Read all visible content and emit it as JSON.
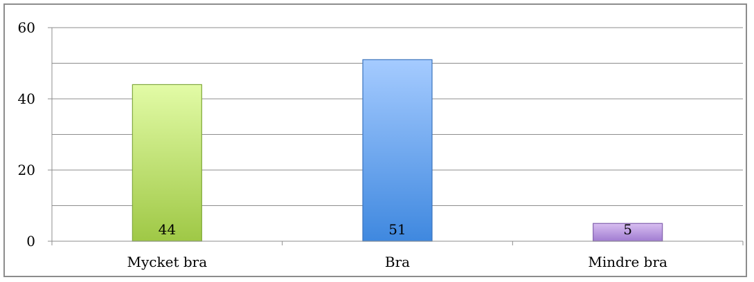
{
  "chart_data": {
    "type": "bar",
    "categories": [
      "Mycket bra",
      "Bra",
      "Mindre bra"
    ],
    "values": [
      44,
      51,
      5
    ],
    "data_labels": [
      "44",
      "51",
      "5"
    ],
    "title": "",
    "xlabel": "",
    "ylabel": "",
    "ylim": [
      0,
      60
    ],
    "major_ticks": [
      0,
      20,
      40,
      60
    ],
    "major_tick_labels": [
      "0",
      "20",
      "40",
      "60"
    ],
    "minor_gridlines": [
      10,
      30,
      50
    ],
    "grid": true,
    "legend": "none",
    "bar_colors": [
      {
        "top": "#e2fba6",
        "bottom": "#9fc846",
        "stroke": "#7fa83a"
      },
      {
        "top": "#a5cbff",
        "bottom": "#3f88df",
        "stroke": "#3a73bd"
      },
      {
        "top": "#d8bef1",
        "bottom": "#a07cd1",
        "stroke": "#8261ad"
      }
    ],
    "gridline_color": "#8c8c8c",
    "axis_color": "#8c8c8c"
  }
}
